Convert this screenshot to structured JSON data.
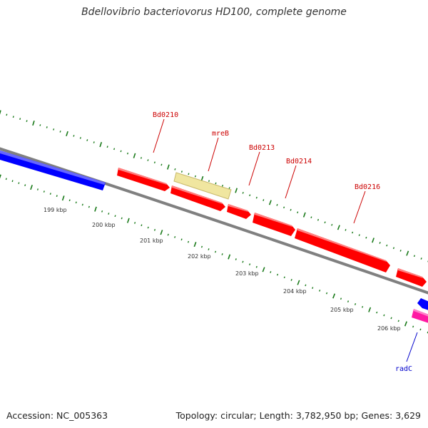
{
  "title": "Bdellovibrio bacteriovorus HD100, complete genome",
  "footer": {
    "accession": "Accession: NC_005363",
    "summary": "Topology: circular; Length: 3,782,950 bp; Genes: 3,629"
  },
  "scale_labels": [
    "199 kbp",
    "200 kbp",
    "201 kbp",
    "202 kbp",
    "203 kbp",
    "204 kbp",
    "205 kbp",
    "206 kbp"
  ],
  "gene_labels": [
    {
      "text": "Bd0210",
      "color": "#cc0000"
    },
    {
      "text": "mreB",
      "color": "#cc0000"
    },
    {
      "text": "Bd0213",
      "color": "#cc0000"
    },
    {
      "text": "Bd0214",
      "color": "#cc0000"
    },
    {
      "text": "Bd0216",
      "color": "#cc0000"
    },
    {
      "text": "radC",
      "color": "#0000cc"
    }
  ],
  "colors": {
    "backbone": "#808080",
    "forward_gene": "#ff0000",
    "reverse_gene": "#0000ff",
    "rna_gene": "#f0e6a0",
    "pink_gene": "#ff1aa3",
    "tick": "#1a7a1a",
    "scale_text": "#333333"
  }
}
